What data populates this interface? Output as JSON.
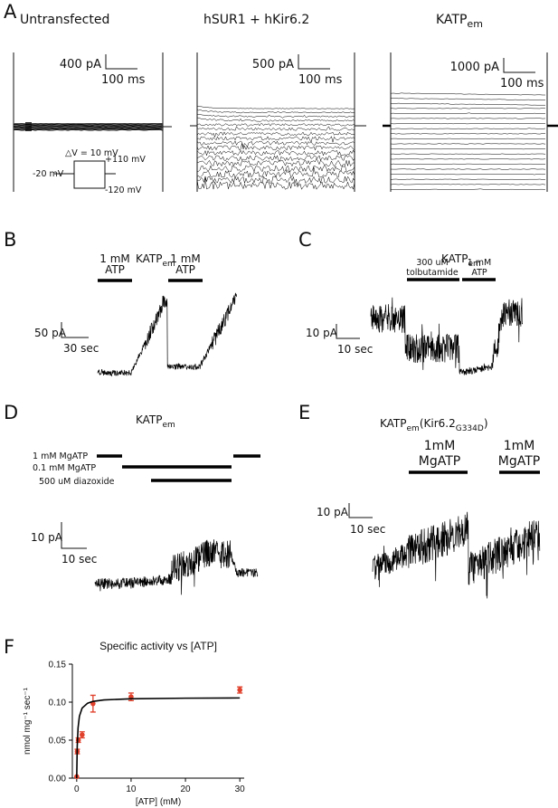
{
  "panel_a": {
    "label": "A",
    "title_1": "Untransfected",
    "title_2": "hSUR1 + hKir6.2",
    "title_3": {
      "main": "KATP",
      "sub": "em"
    },
    "scale_1": {
      "current": "400 pA",
      "time": "100 ms"
    },
    "scale_2": {
      "current": "500 pA",
      "time": "100 ms"
    },
    "scale_3": {
      "current": "1000 pA",
      "time": "100 ms"
    },
    "protocol": {
      "step": "△V = 10 mV",
      "high": "+110 mV",
      "hold": "-20 mV",
      "low": "-120 mV"
    }
  },
  "panel_b": {
    "label": "B",
    "title": {
      "main": "KATP",
      "sub": "em"
    },
    "applications": [
      [
        "1 mM",
        "ATP"
      ],
      [
        "1 mM",
        "ATP"
      ]
    ],
    "scale": {
      "current": "50 pA",
      "time": "30 sec"
    }
  },
  "panel_c": {
    "label": "C",
    "title": {
      "main": "KATP",
      "sub": "em"
    },
    "applications": [
      [
        "300 uM",
        "tolbutamide"
      ],
      [
        "1 mM",
        "ATP"
      ]
    ],
    "scale": {
      "current": "10 pA",
      "time": "10 sec"
    }
  },
  "panel_d": {
    "label": "D",
    "title": {
      "main": "KATP",
      "sub": "em"
    },
    "applications": [
      "1 mM MgATP",
      "0.1 mM MgATP",
      "500 uM diazoxide"
    ],
    "scale": {
      "current": "10 pA",
      "time": "10 sec"
    }
  },
  "panel_e": {
    "label": "E",
    "title": {
      "main": "KATP",
      "sub": "em",
      "suffix": "(Kir6.2",
      "suffix_sub": "G334D",
      "end": ")"
    },
    "applications": [
      [
        "1mM",
        "MgATP"
      ],
      [
        "1mM",
        "MgATP"
      ]
    ],
    "scale": {
      "current": "10 pA",
      "time": "10 sec"
    }
  },
  "panel_f": {
    "label": "F"
  },
  "chart_data": {
    "type": "scatter",
    "title": "Specific activity vs [ATP]",
    "x_label": "[ATP] (mM)",
    "y_label": "nmol mg⁻¹ sec⁻¹",
    "series": [
      {
        "color": "#e0412c",
        "x": [
          0,
          0.1,
          0.3,
          1,
          3,
          10,
          30
        ],
        "values": [
          0.002,
          0.035,
          0.05,
          0.057,
          0.098,
          0.107,
          0.116
        ],
        "errors": [
          0,
          0.003,
          0.003,
          0.004,
          0.011,
          0.005,
          0.004
        ]
      },
      {
        "type": "line",
        "color": "#000000",
        "x": [
          0,
          0.1,
          0.25,
          0.5,
          1,
          2,
          3,
          5,
          10,
          20,
          30
        ],
        "values": [
          0,
          0.042,
          0.066,
          0.0815,
          0.0922,
          0.0986,
          0.101,
          0.1029,
          0.1044,
          0.1052,
          0.1055
        ]
      }
    ],
    "xlim": [
      -0.8,
      30.8
    ],
    "ylim": [
      0,
      0.15
    ],
    "xticks": [
      0,
      10,
      20,
      30
    ],
    "yticks": [
      {
        "value": 0,
        "label": "0.00"
      },
      {
        "value": 0.05,
        "label": "0.05"
      },
      {
        "value": 0.1,
        "label": "0.10"
      },
      {
        "value": 0.15,
        "label": "0.15"
      }
    ]
  }
}
